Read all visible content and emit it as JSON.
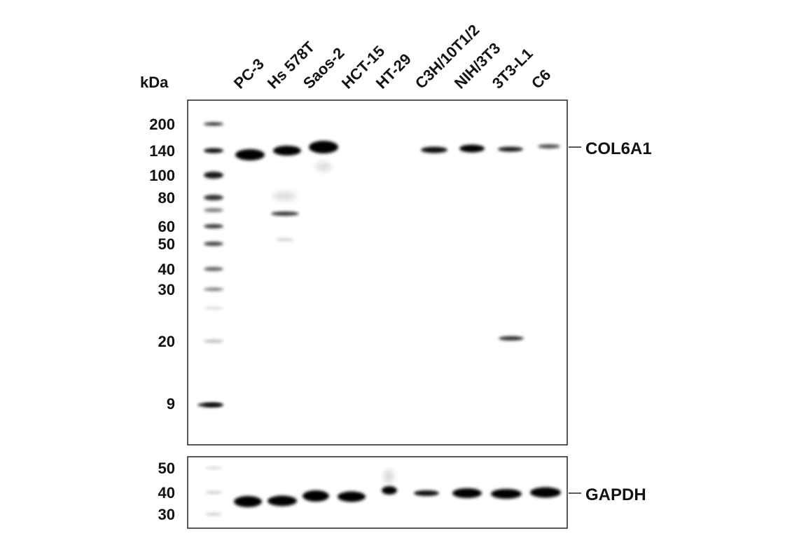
{
  "kda_label": "kDa",
  "lanes": [
    "PC-3",
    "Hs 578T",
    "Saos-2",
    "HCT-15",
    "HT-29",
    "C3H/10T1/2",
    "NIH/3T3",
    "3T3-L1",
    "C6"
  ],
  "top_panel": {
    "target": "COL6A1",
    "markers": [
      "200",
      "140",
      "100",
      "80",
      "60",
      "50",
      "40",
      "30",
      "20",
      "9"
    ]
  },
  "bottom_panel": {
    "target": "GAPDH",
    "markers": [
      "50",
      "40",
      "30"
    ]
  },
  "colors": {
    "band": "#000000",
    "background": "#ffffff",
    "frame": "#222222"
  }
}
